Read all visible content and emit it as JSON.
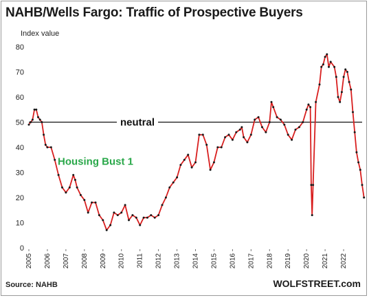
{
  "title": "NAHB/Wells Fargo: Traffic of Prospective Buyers",
  "subtitle": "Index value",
  "source": "Source: NAHB",
  "brand": "WOLFSTREET.com",
  "colors": {
    "series": "#d81e1e",
    "markers": "#1a1a1a",
    "neutral_line": "#111111",
    "annotation": "#2aa84a"
  },
  "chart_data": {
    "type": "line",
    "title": "NAHB/Wells Fargo: Traffic of Prospective Buyers",
    "ylabel": "Index value",
    "xlabel": "",
    "ylim": [
      0,
      80
    ],
    "xlim": [
      2005,
      2023
    ],
    "y_ticks": [
      0,
      10,
      20,
      30,
      40,
      50,
      60,
      70,
      80
    ],
    "x_ticks": [
      "2005",
      "2006",
      "2007",
      "2008",
      "2009",
      "2010",
      "2011",
      "2012",
      "2013",
      "2014",
      "2015",
      "2016",
      "2017",
      "2018",
      "2019",
      "2020",
      "2021",
      "2022"
    ],
    "grid": false,
    "reference_line": {
      "y": 50,
      "label": "neutral"
    },
    "annotations": [
      {
        "text": "Housing Bust 1",
        "x": 2008.6,
        "y": 33
      }
    ],
    "series": [
      {
        "points": [
          [
            2005.0,
            49
          ],
          [
            2005.1,
            50
          ],
          [
            2005.2,
            51
          ],
          [
            2005.3,
            55
          ],
          [
            2005.4,
            55
          ],
          [
            2005.5,
            52
          ],
          [
            2005.6,
            51
          ],
          [
            2005.7,
            50
          ],
          [
            2005.8,
            45
          ],
          [
            2005.9,
            41
          ],
          [
            2006.0,
            40
          ],
          [
            2006.2,
            40
          ],
          [
            2006.4,
            35
          ],
          [
            2006.6,
            29
          ],
          [
            2006.8,
            24
          ],
          [
            2007.0,
            22
          ],
          [
            2007.2,
            24
          ],
          [
            2007.4,
            29
          ],
          [
            2007.5,
            27
          ],
          [
            2007.6,
            24
          ],
          [
            2007.8,
            21
          ],
          [
            2008.0,
            19
          ],
          [
            2008.2,
            14
          ],
          [
            2008.4,
            18
          ],
          [
            2008.6,
            18
          ],
          [
            2008.8,
            13
          ],
          [
            2009.0,
            11
          ],
          [
            2009.2,
            7
          ],
          [
            2009.4,
            9
          ],
          [
            2009.6,
            14
          ],
          [
            2009.8,
            13
          ],
          [
            2010.0,
            14
          ],
          [
            2010.2,
            17
          ],
          [
            2010.4,
            11
          ],
          [
            2010.6,
            13
          ],
          [
            2010.8,
            12
          ],
          [
            2011.0,
            9
          ],
          [
            2011.2,
            12
          ],
          [
            2011.4,
            12
          ],
          [
            2011.6,
            13
          ],
          [
            2011.8,
            12
          ],
          [
            2012.0,
            13
          ],
          [
            2012.2,
            17
          ],
          [
            2012.4,
            20
          ],
          [
            2012.6,
            24
          ],
          [
            2012.8,
            26
          ],
          [
            2013.0,
            28
          ],
          [
            2013.2,
            33
          ],
          [
            2013.4,
            35
          ],
          [
            2013.6,
            37
          ],
          [
            2013.8,
            32
          ],
          [
            2014.0,
            34
          ],
          [
            2014.2,
            45
          ],
          [
            2014.4,
            45
          ],
          [
            2014.6,
            41
          ],
          [
            2014.8,
            31
          ],
          [
            2015.0,
            34
          ],
          [
            2015.2,
            40
          ],
          [
            2015.4,
            40
          ],
          [
            2015.6,
            44
          ],
          [
            2015.8,
            45
          ],
          [
            2016.0,
            43
          ],
          [
            2016.2,
            46
          ],
          [
            2016.4,
            47
          ],
          [
            2016.5,
            48
          ],
          [
            2016.6,
            44
          ],
          [
            2016.8,
            42
          ],
          [
            2017.0,
            45
          ],
          [
            2017.2,
            51
          ],
          [
            2017.4,
            52
          ],
          [
            2017.6,
            48
          ],
          [
            2017.8,
            46
          ],
          [
            2018.0,
            50
          ],
          [
            2018.1,
            58
          ],
          [
            2018.2,
            56
          ],
          [
            2018.4,
            52
          ],
          [
            2018.6,
            51
          ],
          [
            2018.8,
            49
          ],
          [
            2019.0,
            45
          ],
          [
            2019.2,
            43
          ],
          [
            2019.4,
            47
          ],
          [
            2019.6,
            48
          ],
          [
            2019.8,
            50
          ],
          [
            2020.0,
            55
          ],
          [
            2020.1,
            57
          ],
          [
            2020.2,
            56
          ],
          [
            2020.25,
            25
          ],
          [
            2020.3,
            13
          ],
          [
            2020.35,
            25
          ],
          [
            2020.5,
            58
          ],
          [
            2020.7,
            65
          ],
          [
            2020.8,
            72
          ],
          [
            2020.9,
            73
          ],
          [
            2021.0,
            76
          ],
          [
            2021.1,
            77
          ],
          [
            2021.2,
            72
          ],
          [
            2021.3,
            74
          ],
          [
            2021.5,
            72
          ],
          [
            2021.6,
            68
          ],
          [
            2021.7,
            60
          ],
          [
            2021.8,
            58
          ],
          [
            2021.9,
            62
          ],
          [
            2022.0,
            68
          ],
          [
            2022.1,
            71
          ],
          [
            2022.2,
            70
          ],
          [
            2022.3,
            66
          ],
          [
            2022.4,
            63
          ],
          [
            2022.5,
            54
          ],
          [
            2022.6,
            46
          ],
          [
            2022.7,
            38
          ],
          [
            2022.8,
            34
          ],
          [
            2022.9,
            31
          ],
          [
            2023.0,
            25
          ],
          [
            2023.1,
            20
          ]
        ]
      }
    ]
  }
}
